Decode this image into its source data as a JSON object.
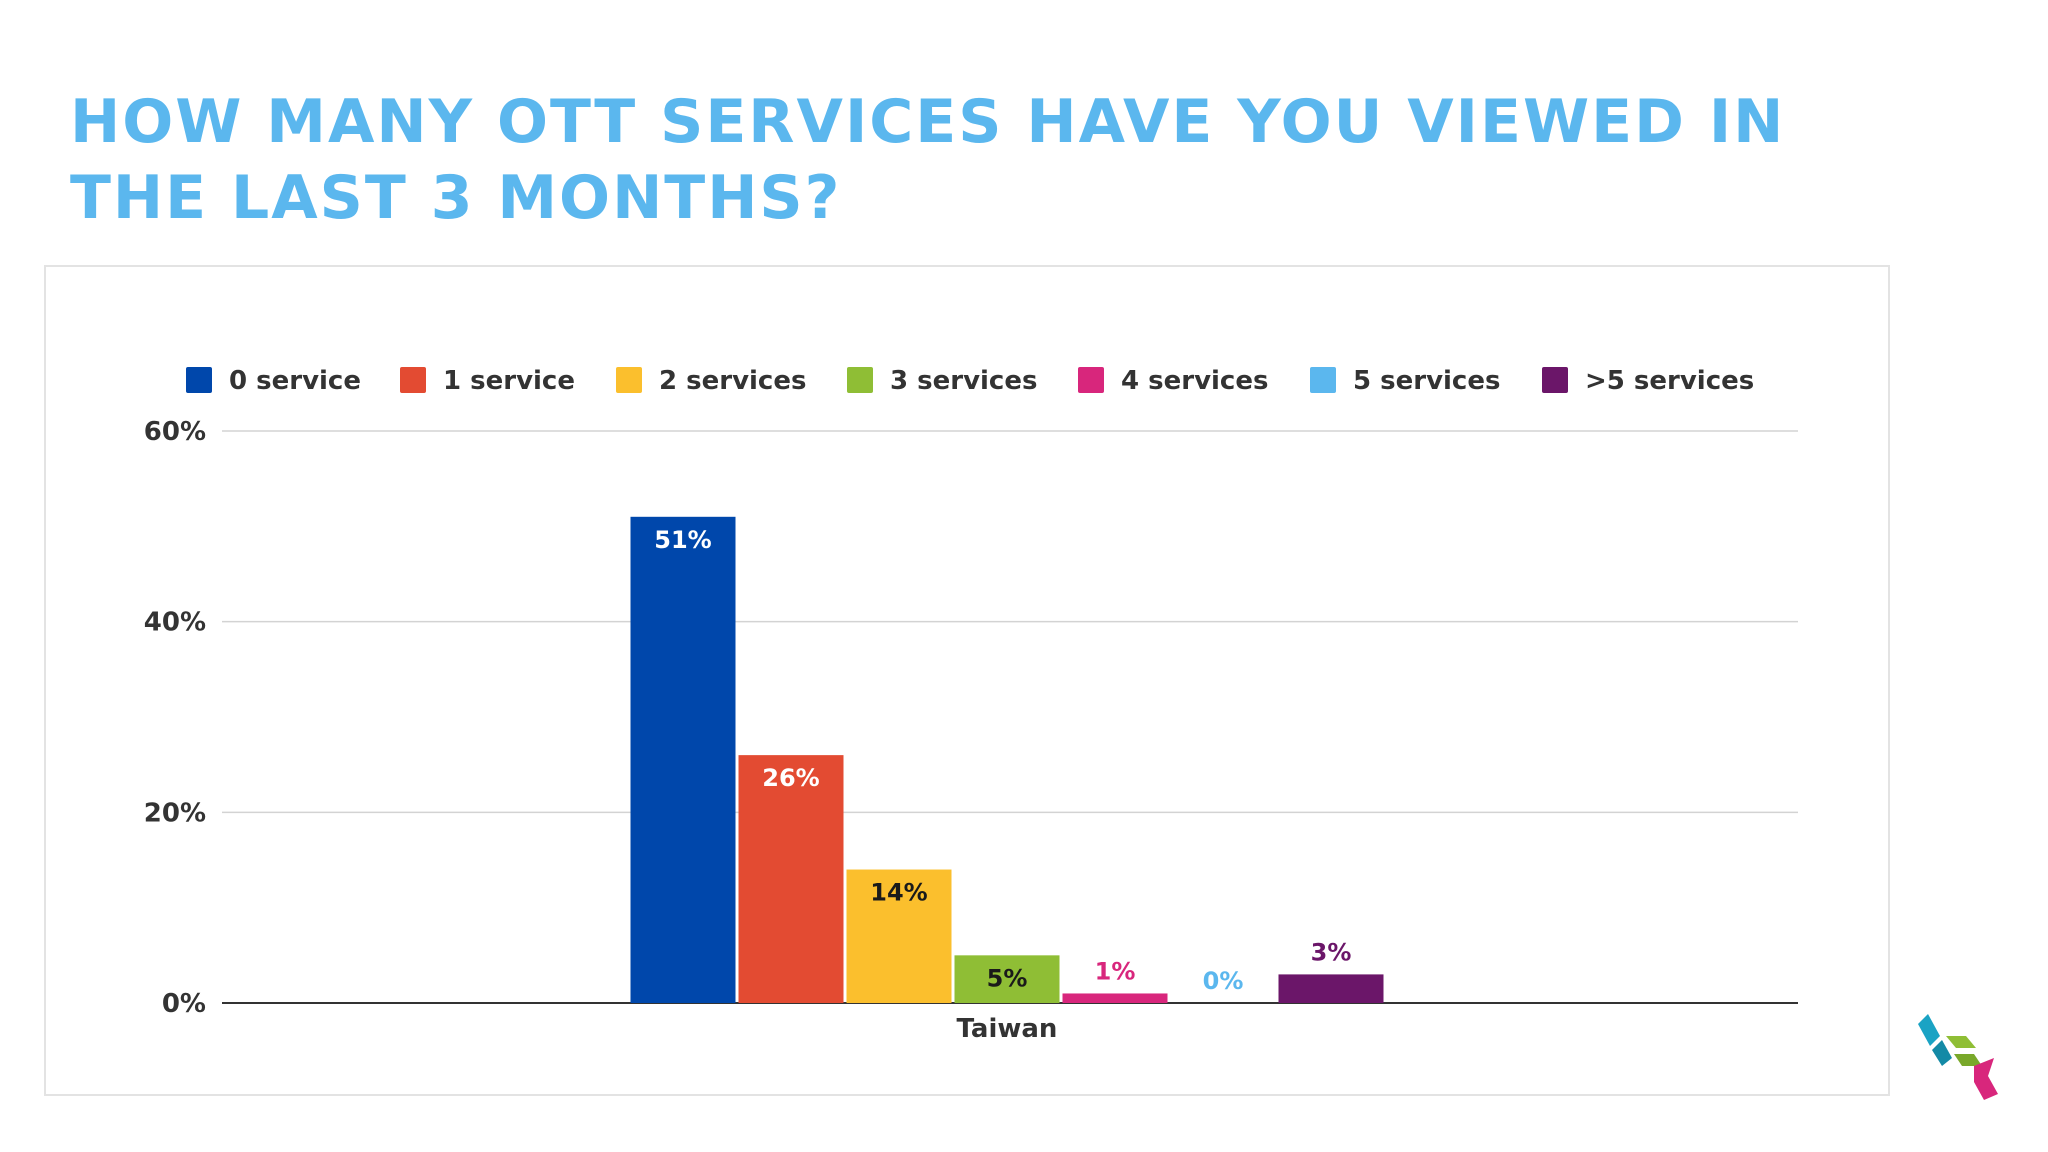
{
  "slide": {
    "title": "HOW MANY OTT SERVICES HAVE YOU VIEWED IN THE LAST 3 MONTHS?",
    "logo_icon": "cube-logo-icon"
  },
  "chart_data": {
    "type": "bar",
    "categories": [
      "Taiwan"
    ],
    "series": [
      {
        "name": "0 service",
        "values": [
          51
        ],
        "label": "51%",
        "color": "#0047ab"
      },
      {
        "name": "1 service",
        "values": [
          26
        ],
        "label": "26%",
        "color": "#e34b32"
      },
      {
        "name": "2 services",
        "values": [
          14
        ],
        "label": "14%",
        "color": "#fbbf2d"
      },
      {
        "name": "3 services",
        "values": [
          5
        ],
        "label": "5%",
        "color": "#8fbe35"
      },
      {
        "name": "4 services",
        "values": [
          1
        ],
        "label": "1%",
        "color": "#d8267c"
      },
      {
        "name": "5 services",
        "values": [
          0
        ],
        "label": "0%",
        "color": "#5bb7ee"
      },
      {
        "name": ">5 services",
        "values": [
          3
        ],
        "label": "3%",
        "color": "#6b1669"
      }
    ],
    "ylim": [
      0,
      60
    ],
    "yticks": [
      "0%",
      "20%",
      "40%",
      "60%"
    ],
    "ytick_values": [
      0,
      20,
      40,
      60
    ],
    "grid": true,
    "legend": "top"
  }
}
